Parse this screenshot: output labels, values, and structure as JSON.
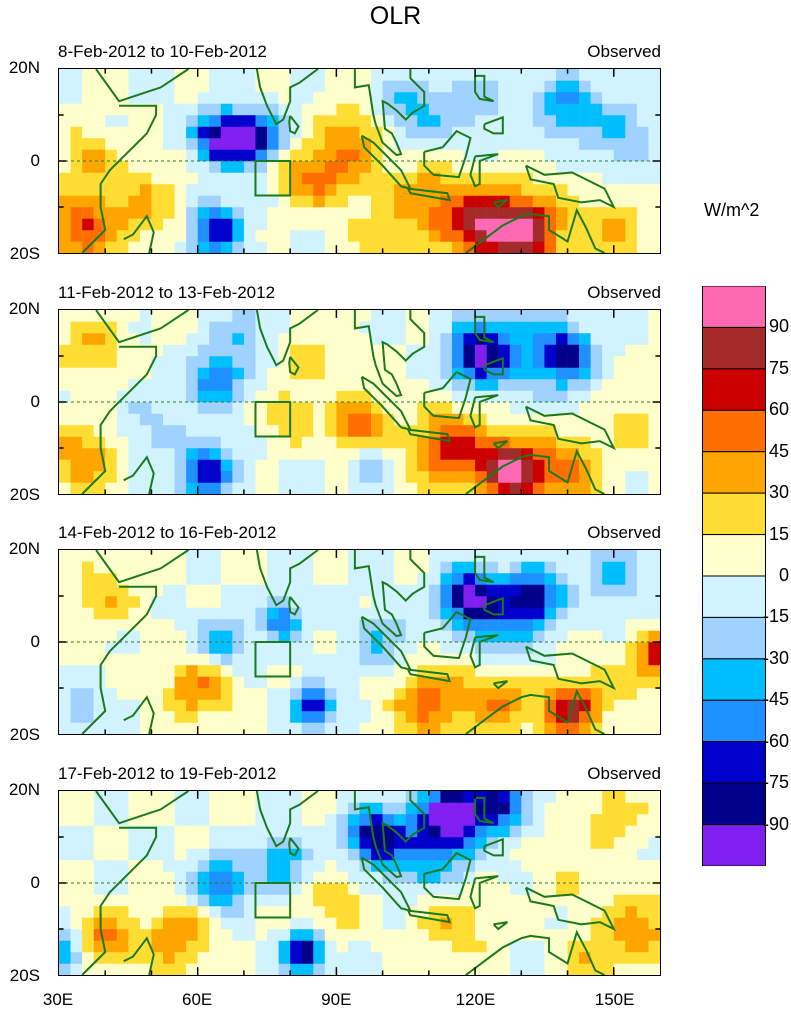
{
  "chart_data": {
    "type": "heatmap",
    "title": "OLR",
    "units": "W/m^2",
    "x_ticks": [
      "30E",
      "60E",
      "90E",
      "120E",
      "150E"
    ],
    "x_tick_values": [
      30,
      60,
      90,
      120,
      150
    ],
    "y_ticks": [
      "20N",
      "0",
      "20S"
    ],
    "xlim": [
      30,
      160
    ],
    "ylim": [
      -20,
      20
    ],
    "levels": [
      -90,
      -75,
      -60,
      -45,
      -30,
      -15,
      0,
      15,
      30,
      45,
      60,
      75,
      90
    ],
    "level_labels": [
      "90",
      "75",
      "60",
      "45",
      "30",
      "15",
      "0",
      "-15",
      "-30",
      "-45",
      "-60",
      "-75",
      "-90"
    ],
    "colors": [
      "#8020F0",
      "#00008B",
      "#0000CD",
      "#1E90FF",
      "#00BFFF",
      "#A0D2FF",
      "#D1F3FF",
      "#FFFFCC",
      "#FFDD33",
      "#FFA500",
      "#FF6F00",
      "#CC0000",
      "#A52A2A",
      "#FF69B4"
    ],
    "reference_box": {
      "lon": [
        72.5,
        80
      ],
      "lat": [
        -7.5,
        0
      ]
    },
    "panels": [
      {
        "date_range": "8-Feb-2012 to 10-Feb-2012",
        "label": "Observed",
        "features": [
          [
            65,
            5,
            -95,
            4
          ],
          [
            73,
            5,
            -75,
            4
          ],
          [
            64,
            -15,
            -75,
            4
          ],
          [
            105,
            10,
            -40,
            6
          ],
          [
            140,
            12,
            -45,
            5
          ],
          [
            152,
            6,
            -30,
            5
          ],
          [
            120,
            12,
            -25,
            5
          ],
          [
            95,
            5,
            45,
            6
          ],
          [
            88,
            -4,
            30,
            5
          ],
          [
            82,
            -3,
            30,
            4
          ],
          [
            130,
            -15,
            95,
            6
          ],
          [
            120,
            -14,
            60,
            5
          ],
          [
            35,
            -15,
            60,
            5
          ],
          [
            110,
            -8,
            40,
            6
          ],
          [
            36,
            0,
            30,
            5
          ],
          [
            48,
            -10,
            30,
            6
          ],
          [
            100,
            -18,
            20,
            6
          ],
          [
            150,
            -15,
            30,
            5
          ]
        ]
      },
      {
        "date_range": "11-Feb-2012 to 13-Feb-2012",
        "label": "Observed",
        "features": [
          [
            64,
            5,
            -60,
            4
          ],
          [
            62,
            -15,
            -75,
            4
          ],
          [
            120,
            10,
            -75,
            4
          ],
          [
            140,
            10,
            -75,
            4
          ],
          [
            128,
            12,
            -40,
            8
          ],
          [
            95,
            -5,
            60,
            4
          ],
          [
            128,
            -15,
            95,
            5
          ],
          [
            115,
            -10,
            65,
            6
          ],
          [
            140,
            -15,
            50,
            5
          ],
          [
            35,
            -12,
            45,
            5
          ],
          [
            80,
            -3,
            30,
            4
          ],
          [
            97,
            -13,
            -30,
            3
          ],
          [
            37,
            12,
            30,
            5
          ],
          [
            85,
            10,
            20,
            5
          ],
          [
            153,
            -5,
            20,
            5
          ],
          [
            70,
            15,
            -30,
            4
          ],
          [
            50,
            -5,
            -20,
            5
          ]
        ]
      },
      {
        "date_range": "14-Feb-2012 to 16-Feb-2012",
        "label": "Observed",
        "features": [
          [
            118,
            10,
            -80,
            4
          ],
          [
            133,
            10,
            -75,
            4
          ],
          [
            125,
            6,
            -50,
            6
          ],
          [
            65,
            0,
            -45,
            4
          ],
          [
            78,
            5,
            -60,
            3
          ],
          [
            85,
            -14,
            -80,
            3
          ],
          [
            100,
            0,
            -30,
            5
          ],
          [
            140,
            -15,
            75,
            4
          ],
          [
            110,
            -13,
            50,
            6
          ],
          [
            125,
            -13,
            45,
            5
          ],
          [
            160,
            -3,
            65,
            4
          ],
          [
            60,
            -10,
            45,
            5
          ],
          [
            40,
            10,
            30,
            5
          ],
          [
            35,
            -15,
            -35,
            3
          ],
          [
            150,
            15,
            -30,
            5
          ],
          [
            148,
            -10,
            25,
            5
          ]
        ]
      },
      {
        "date_range": "17-Feb-2012 to 19-Feb-2012",
        "label": "Observed",
        "features": [
          [
            115,
            15,
            -95,
            4
          ],
          [
            125,
            17,
            -80,
            4
          ],
          [
            98,
            10,
            -80,
            4
          ],
          [
            110,
            8,
            -55,
            7
          ],
          [
            83,
            -15,
            -95,
            3
          ],
          [
            65,
            0,
            -60,
            4
          ],
          [
            78,
            5,
            -45,
            4
          ],
          [
            55,
            -12,
            45,
            5
          ],
          [
            40,
            -12,
            50,
            4
          ],
          [
            155,
            -10,
            45,
            5
          ],
          [
            115,
            -8,
            30,
            6
          ],
          [
            31,
            -15,
            -50,
            3
          ],
          [
            140,
            2,
            15,
            5
          ],
          [
            150,
            15,
            25,
            5
          ],
          [
            90,
            -5,
            25,
            5
          ],
          [
            145,
            -17,
            30,
            4
          ]
        ]
      }
    ]
  }
}
